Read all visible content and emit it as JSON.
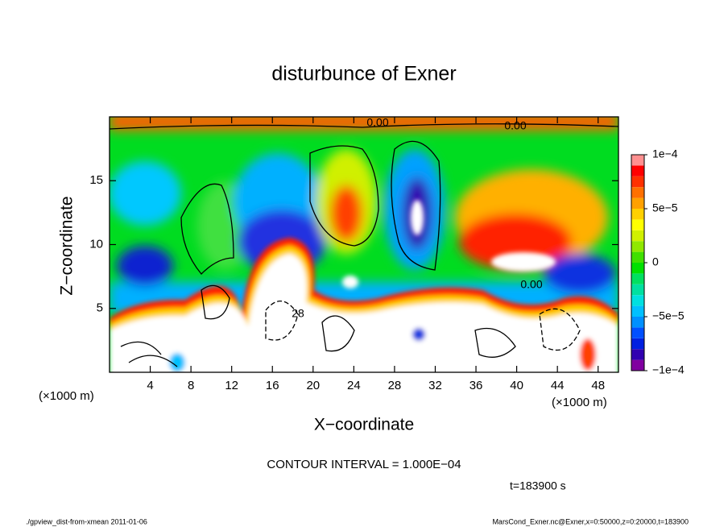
{
  "chart_data": {
    "type": "contour",
    "title": "disturbunce of Exner",
    "xlabel": "X−coordinate",
    "ylabel": "Z−coordinate",
    "x_unit": "(×1000 m)",
    "x_unit_right": "(×1000 m)",
    "xlim": [
      0,
      50
    ],
    "ylim": [
      0,
      20
    ],
    "xticks": [
      4,
      8,
      12,
      16,
      20,
      24,
      28,
      32,
      36,
      40,
      44,
      48
    ],
    "yticks": [
      5,
      10,
      15
    ],
    "contour_labels": [
      "0.00",
      "0.00",
      "0.00",
      "28"
    ],
    "colorbar": {
      "lim": [
        -0.0001,
        0.0001
      ],
      "ticks": [
        {
          "value": 0.0001,
          "label": "1e−4"
        },
        {
          "value": 5e-05,
          "label": "5e−5"
        },
        0,
        {
          "value": -5e-05,
          "label": "−5e−5"
        },
        {
          "value": -0.0001,
          "label": "−1e−4"
        }
      ],
      "colors": [
        "#8000a0",
        "#3000b0",
        "#0020e0",
        "#0050ff",
        "#0090ff",
        "#00c0ff",
        "#00e0e0",
        "#00e0a0",
        "#00e060",
        "#00e000",
        "#40e000",
        "#90e800",
        "#d0f000",
        "#ffff00",
        "#ffd000",
        "#ffa000",
        "#ff7000",
        "#ff3000",
        "#ff0000",
        "#ff9090"
      ]
    },
    "contour_interval": "CONTOUR INTERVAL = 1.000E−04",
    "time_label": "t=183900  s",
    "footer_left": "./gpview_dist-from-xmean   2011-01-06",
    "footer_right": "MarsCond_Exner.nc@Exner,x=0:50000,z=0:20000,t=183900"
  }
}
